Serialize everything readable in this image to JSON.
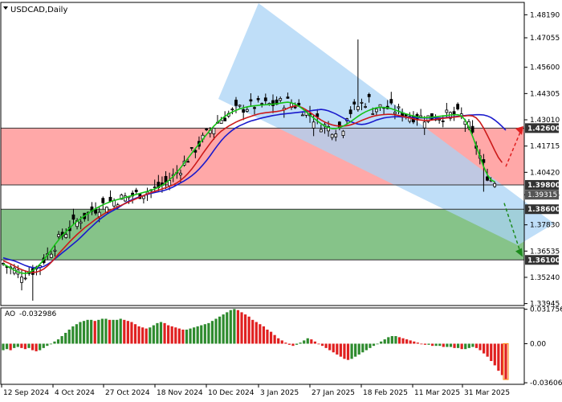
{
  "chart_data": {
    "type": "candlestick",
    "title": "USDCAD,Daily",
    "y_axis": {
      "min": 1.3385,
      "max": 1.488,
      "tick_labels": [
        "1.48190",
        "1.47055",
        "1.45600",
        "1.44305",
        "1.43010",
        "1.41715",
        "1.40420",
        "1.39315",
        "1.37830",
        "1.36535",
        "1.35240",
        "1.33945"
      ]
    },
    "x_axis": {
      "tick_labels": [
        "12 Sep 2024",
        "4 Oct 2024",
        "27 Oct 2024",
        "18 Nov 2024",
        "10 Dec 2024",
        "3 Jan 2025",
        "27 Jan 2025",
        "18 Feb 2025",
        "11 Mar 2025",
        "31 Mar 2025"
      ]
    },
    "levels": [
      {
        "value": 1.426,
        "label": "1.42600",
        "color": "#333333"
      },
      {
        "value": 1.398,
        "label": "1.39800",
        "color": "#333333"
      },
      {
        "value": 1.386,
        "label": "1.38600",
        "color": "#333333"
      },
      {
        "value": 1.361,
        "label": "1.36100",
        "color": "#333333"
      }
    ],
    "zones": [
      {
        "from": 1.398,
        "to": 1.426,
        "color": "#ff9e9e"
      },
      {
        "from": 1.361,
        "to": 1.386,
        "color": "#79bd7c"
      }
    ],
    "price_markers": [
      {
        "value": 1.39315,
        "label": "1.39315",
        "color": "#555555"
      }
    ],
    "channel": {
      "color": "#a9d3f5",
      "comment": "descending channel"
    },
    "moving_averages": [
      {
        "color": "#1a1acc",
        "y": [
          1.362,
          1.3615,
          1.361,
          1.3605,
          1.3598,
          1.359,
          1.3582,
          1.3576,
          1.3572,
          1.357,
          1.3572,
          1.3578,
          1.3588,
          1.36,
          1.3615,
          1.363,
          1.3645,
          1.366,
          1.3675,
          1.369,
          1.3705,
          1.3722,
          1.374,
          1.3758,
          1.3775,
          1.3792,
          1.3808,
          1.3822,
          1.3835,
          1.3846,
          1.3856,
          1.3866,
          1.3878,
          1.389,
          1.39,
          1.3908,
          1.3915,
          1.3922,
          1.3928,
          1.3933,
          1.3938,
          1.3942,
          1.3946,
          1.395,
          1.3955,
          1.3962,
          1.397,
          1.398,
          1.399,
          1.4,
          1.4012,
          1.4025,
          1.404,
          1.4058,
          1.4078,
          1.41,
          1.4124,
          1.415,
          1.4175,
          1.4198,
          1.4218,
          1.4235,
          1.425,
          1.4262,
          1.4272,
          1.428,
          1.4288,
          1.4295,
          1.43,
          1.4305,
          1.431,
          1.4314,
          1.4318,
          1.4322,
          1.4325,
          1.4328,
          1.433,
          1.4332,
          1.4334,
          1.4336,
          1.4338,
          1.434,
          1.4342,
          1.4345,
          1.4348,
          1.435,
          1.4352,
          1.435,
          1.4345,
          1.4338,
          1.433,
          1.432,
          1.431,
          1.43,
          1.4292,
          1.4285,
          1.428,
          1.4278,
          1.428,
          1.4285,
          1.4292,
          1.43,
          1.4305,
          1.431,
          1.4313,
          1.4315,
          1.4316,
          1.4316,
          1.4315,
          1.4314,
          1.4313,
          1.4312,
          1.4311,
          1.431,
          1.431,
          1.431,
          1.431,
          1.431,
          1.431,
          1.431,
          1.4312,
          1.4314,
          1.4316,
          1.4318,
          1.432,
          1.4322,
          1.4324,
          1.4325,
          1.4326,
          1.4326,
          1.4325,
          1.432,
          1.4312,
          1.43,
          1.4285,
          1.4268,
          1.425
        ]
      },
      {
        "color": "#cc1a1a",
        "y": [
          1.3605,
          1.3598,
          1.359,
          1.358,
          1.357,
          1.3562,
          1.3555,
          1.355,
          1.3548,
          1.355,
          1.3556,
          1.3566,
          1.358,
          1.3598,
          1.3618,
          1.364,
          1.366,
          1.368,
          1.37,
          1.3718,
          1.3736,
          1.3752,
          1.3768,
          1.3782,
          1.3796,
          1.381,
          1.3822,
          1.3834,
          1.3845,
          1.3855,
          1.3864,
          1.3872,
          1.388,
          1.3888,
          1.3896,
          1.3904,
          1.3912,
          1.392,
          1.3928,
          1.3935,
          1.3942,
          1.3948,
          1.3954,
          1.396,
          1.3966,
          1.3973,
          1.398,
          1.399,
          1.4002,
          1.4018,
          1.4036,
          1.4058,
          1.4082,
          1.4108,
          1.4135,
          1.416,
          1.4185,
          1.4208,
          1.4228,
          1.4245,
          1.4258,
          1.427,
          1.428,
          1.429,
          1.4298,
          1.4305,
          1.4312,
          1.4318,
          1.4324,
          1.4329,
          1.4333,
          1.4336,
          1.4338,
          1.434,
          1.4342,
          1.4345,
          1.435,
          1.4358,
          1.4365,
          1.437,
          1.4368,
          1.436,
          1.435,
          1.4338,
          1.4325,
          1.4312,
          1.43,
          1.429,
          1.4282,
          1.4276,
          1.4272,
          1.427,
          1.427,
          1.4272,
          1.4276,
          1.4282,
          1.429,
          1.4298,
          1.4305,
          1.4312,
          1.4318,
          1.4322,
          1.4325,
          1.4327,
          1.4328,
          1.4328,
          1.4326,
          1.4322,
          1.4318,
          1.4314,
          1.431,
          1.4306,
          1.4302,
          1.43,
          1.4298,
          1.4298,
          1.43,
          1.4303,
          1.4306,
          1.4308,
          1.431,
          1.4312,
          1.4314,
          1.4316,
          1.4318,
          1.432,
          1.4322,
          1.432,
          1.431,
          1.429,
          1.426,
          1.4225,
          1.4188,
          1.415,
          1.4115,
          1.409
        ]
      },
      {
        "color": "#17c217",
        "y": [
          1.359,
          1.358,
          1.357,
          1.356,
          1.355,
          1.3545,
          1.3543,
          1.3548,
          1.3558,
          1.3572,
          1.359,
          1.3612,
          1.3635,
          1.366,
          1.3685,
          1.3708,
          1.373,
          1.375,
          1.3768,
          1.3785,
          1.38,
          1.3814,
          1.3827,
          1.384,
          1.3852,
          1.3863,
          1.3873,
          1.3882,
          1.389,
          1.3897,
          1.3903,
          1.3908,
          1.3913,
          1.3918,
          1.3923,
          1.3928,
          1.3933,
          1.3938,
          1.3943,
          1.3948,
          1.3954,
          1.396,
          1.3968,
          1.3978,
          1.399,
          1.4005,
          1.4022,
          1.4042,
          1.4064,
          1.4088,
          1.4112,
          1.4136,
          1.416,
          1.4182,
          1.4205,
          1.4228,
          1.425,
          1.427,
          1.4288,
          1.4305,
          1.4318,
          1.433,
          1.434,
          1.4348,
          1.4355,
          1.436,
          1.4365,
          1.4368,
          1.437,
          1.4372,
          1.4374,
          1.4375,
          1.4376,
          1.4378,
          1.438,
          1.4383,
          1.4386,
          1.4388,
          1.4385,
          1.4378,
          1.4368,
          1.4355,
          1.434,
          1.4325,
          1.431,
          1.4295,
          1.4282,
          1.427,
          1.4262,
          1.4258,
          1.4258,
          1.4262,
          1.427,
          1.428,
          1.4292,
          1.4305,
          1.4318,
          1.433,
          1.434,
          1.4348,
          1.4355,
          1.436,
          1.4362,
          1.4362,
          1.436,
          1.4356,
          1.435,
          1.4343,
          1.4336,
          1.433,
          1.4325,
          1.432,
          1.4316,
          1.4313,
          1.4312,
          1.4312,
          1.4314,
          1.4316,
          1.4318,
          1.432,
          1.4322,
          1.4325,
          1.4326,
          1.4326,
          1.432,
          1.43,
          1.4265,
          1.422,
          1.417,
          1.412,
          1.407,
          1.403,
          1.4005,
          1.3995
        ]
      }
    ],
    "ao": {
      "label": "AO",
      "current_label": "-0.032986",
      "min": -0.0375,
      "max": 0.033,
      "tick_labels": [
        "0.031756",
        "0.00",
        "-0.036069"
      ],
      "up_color": "#2e8b2e",
      "down_color": "#e02020",
      "values": [
        -0.006,
        -0.005,
        -0.006,
        -0.004,
        -0.003,
        -0.004,
        -0.005,
        -0.004,
        -0.006,
        -0.007,
        -0.006,
        -0.004,
        -0.002,
        0.0,
        0.002,
        0.004,
        0.007,
        0.01,
        0.013,
        0.016,
        0.018,
        0.02,
        0.021,
        0.022,
        0.022,
        0.021,
        0.022,
        0.023,
        0.023,
        0.022,
        0.022,
        0.022,
        0.023,
        0.022,
        0.021,
        0.02,
        0.018,
        0.016,
        0.015,
        0.014,
        0.015,
        0.017,
        0.019,
        0.02,
        0.019,
        0.017,
        0.016,
        0.015,
        0.014,
        0.013,
        0.013,
        0.014,
        0.015,
        0.016,
        0.017,
        0.018,
        0.019,
        0.021,
        0.023,
        0.025,
        0.027,
        0.029,
        0.031,
        0.032,
        0.031,
        0.029,
        0.027,
        0.025,
        0.022,
        0.02,
        0.018,
        0.016,
        0.013,
        0.011,
        0.008,
        0.005,
        0.003,
        0.001,
        -0.001,
        -0.002,
        -0.001,
        0.001,
        0.003,
        0.005,
        0.004,
        0.002,
        0.0,
        -0.002,
        -0.004,
        -0.006,
        -0.008,
        -0.01,
        -0.012,
        -0.014,
        -0.015,
        -0.014,
        -0.012,
        -0.01,
        -0.008,
        -0.006,
        -0.004,
        -0.002,
        0.0,
        0.002,
        0.004,
        0.006,
        0.007,
        0.007,
        0.006,
        0.005,
        0.004,
        0.003,
        0.002,
        0.001,
        0.0,
        -0.001,
        -0.001,
        -0.002,
        -0.002,
        -0.002,
        -0.003,
        -0.003,
        -0.003,
        -0.004,
        -0.004,
        -0.005,
        -0.005,
        -0.004,
        -0.003,
        -0.004,
        -0.006,
        -0.009,
        -0.012,
        -0.016,
        -0.02,
        -0.025,
        -0.029,
        -0.033
      ]
    }
  }
}
